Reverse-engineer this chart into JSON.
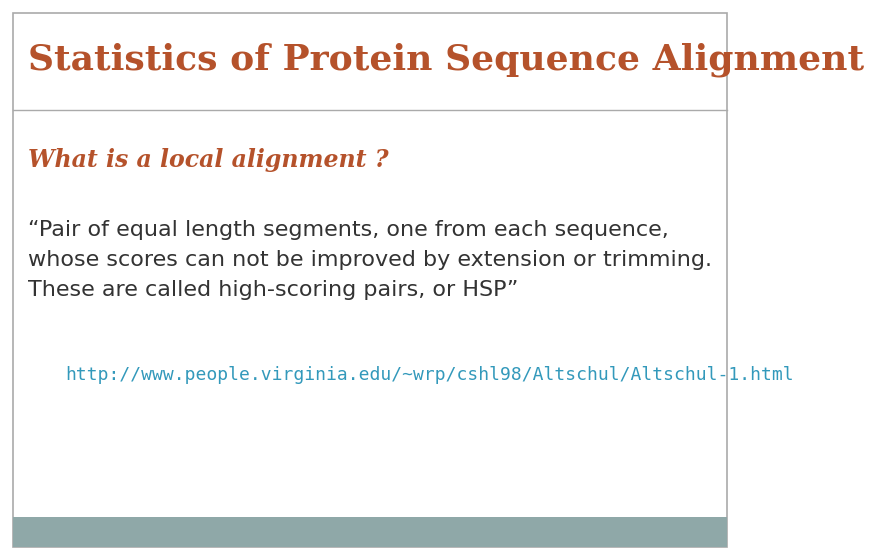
{
  "title": "Statistics of Protein Sequence Alignment",
  "title_color": "#b5522b",
  "title_fontsize": 26,
  "subtitle": "What is a local alignment ?",
  "subtitle_color": "#b5522b",
  "subtitle_fontsize": 17,
  "body_text": "“Pair of equal length segments, one from each sequence,\nwhose scores can not be improved by extension or trimming.\nThese are called high-scoring pairs, or HSP”",
  "body_color": "#333333",
  "body_fontsize": 16,
  "link_text": "http://www.people.virginia.edu/~wrp/cshl98/Altschul/Altschul-1.html",
  "link_color": "#3399bb",
  "link_fontsize": 13,
  "background_color": "#ffffff",
  "border_color": "#aaaaaa",
  "footer_color": "#8fa8a8",
  "header_line_color": "#aaaaaa"
}
